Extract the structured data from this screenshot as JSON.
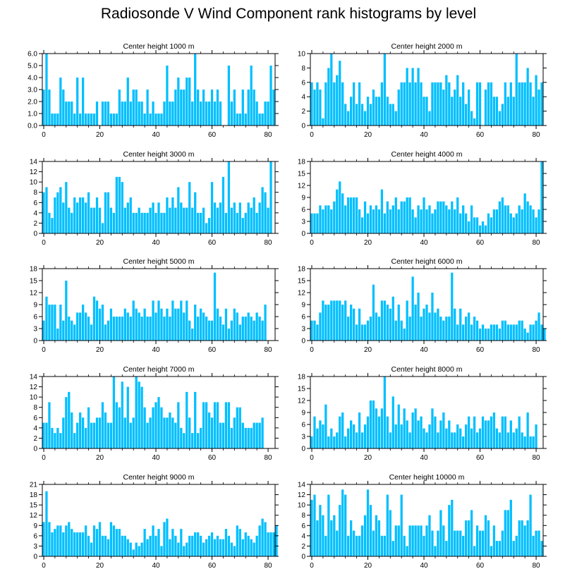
{
  "figure": {
    "title": "Radiosonde V Wind Component rank histograms by level",
    "bar_color": "#00bfff",
    "axis_color": "#000000"
  },
  "chart_data": [
    {
      "type": "bar",
      "title": "Center height 1000 m",
      "x_ticks": [
        0,
        20,
        40,
        60,
        80
      ],
      "y_ticks": [
        "0.0",
        "1.0",
        "2.0",
        "3.0",
        "4.0",
        "5.0",
        "6.0"
      ],
      "ylim": [
        0,
        6
      ],
      "values": [
        3,
        6,
        3,
        1,
        1,
        1,
        4,
        3,
        2,
        2,
        2,
        1,
        4,
        1,
        4,
        1,
        1,
        1,
        1,
        2,
        0,
        2,
        2,
        2,
        1,
        1,
        1,
        3,
        2,
        2,
        4,
        2,
        3,
        3,
        2,
        2,
        1,
        3,
        1,
        2,
        1,
        1,
        1,
        2,
        5,
        2,
        2,
        3,
        4,
        3,
        3,
        4,
        4,
        2,
        6,
        3,
        2,
        3,
        2,
        2,
        3,
        2,
        3,
        2,
        0,
        0,
        5,
        2,
        3,
        1,
        1,
        3,
        1,
        3,
        5,
        3,
        2,
        1,
        1,
        2,
        2,
        5,
        3
      ]
    },
    {
      "type": "bar",
      "title": "Center height 2000 m",
      "x_ticks": [
        0,
        20,
        40,
        60,
        80
      ],
      "y_ticks": [
        "0",
        "2",
        "4",
        "6",
        "8",
        "10"
      ],
      "ylim": [
        0,
        10
      ],
      "values": [
        6,
        5,
        6,
        5,
        1,
        6,
        8,
        10,
        6,
        7,
        9,
        6,
        3,
        2,
        4,
        6,
        3,
        6,
        3,
        2,
        4,
        3,
        5,
        4,
        4,
        6,
        10,
        4,
        3,
        3,
        2,
        5,
        6,
        6,
        8,
        6,
        8,
        6,
        8,
        6,
        4,
        4,
        2,
        6,
        6,
        6,
        6,
        5,
        7,
        6,
        4,
        5,
        7,
        4,
        6,
        3,
        5,
        2,
        1,
        6,
        6,
        0,
        5,
        6,
        6,
        4,
        4,
        2,
        3,
        6,
        4,
        6,
        4,
        10,
        6,
        6,
        6,
        8,
        6,
        4,
        7,
        5,
        6
      ]
    },
    {
      "type": "bar",
      "title": "Center height 3000 m",
      "x_ticks": [
        0,
        20,
        40,
        60,
        80
      ],
      "y_ticks": [
        "0",
        "2",
        "4",
        "6",
        "8",
        "10",
        "12",
        "14"
      ],
      "ylim": [
        0,
        14
      ],
      "values": [
        8,
        9,
        4,
        3,
        7,
        8,
        9,
        6,
        10,
        5,
        4,
        7,
        6,
        7,
        7,
        6,
        8,
        5,
        5,
        7,
        5,
        2,
        8,
        8,
        5,
        4,
        11,
        11,
        10,
        5,
        6,
        7,
        4,
        4,
        5,
        4,
        4,
        4,
        5,
        6,
        4,
        6,
        4,
        4,
        7,
        5,
        7,
        5,
        9,
        6,
        5,
        5,
        10,
        5,
        8,
        4,
        4,
        5,
        2,
        3,
        10,
        6,
        5,
        6,
        11,
        4,
        14,
        5,
        6,
        4,
        6,
        3,
        4,
        6,
        5,
        7,
        4,
        6,
        9,
        8,
        5,
        14
      ]
    },
    {
      "type": "bar",
      "title": "Center height 4000 m",
      "x_ticks": [
        0,
        20,
        40,
        60,
        80
      ],
      "y_ticks": [
        "0",
        "3",
        "6",
        "9",
        "12",
        "15",
        "18"
      ],
      "ylim": [
        0,
        18
      ],
      "values": [
        5,
        5,
        5,
        7,
        6,
        7,
        7,
        6,
        8,
        11,
        13,
        10,
        7,
        9,
        9,
        9,
        9,
        6,
        4,
        8,
        5,
        7,
        6,
        7,
        6,
        11,
        5,
        8,
        6,
        7,
        9,
        6,
        8,
        8,
        9,
        9,
        6,
        4,
        7,
        6,
        9,
        6,
        7,
        5,
        6,
        8,
        8,
        8,
        7,
        6,
        8,
        6,
        9,
        5,
        7,
        5,
        3,
        7,
        4,
        4,
        2,
        3,
        2,
        5,
        4,
        6,
        6,
        8,
        9,
        7,
        7,
        5,
        4,
        5,
        7,
        6,
        10,
        8,
        7,
        6,
        4,
        6,
        18
      ]
    },
    {
      "type": "bar",
      "title": "Center height 5000 m",
      "x_ticks": [
        0,
        20,
        40,
        60,
        80
      ],
      "y_ticks": [
        "0",
        "3",
        "6",
        "9",
        "12",
        "15",
        "18"
      ],
      "ylim": [
        0,
        18
      ],
      "values": [
        5,
        11,
        9,
        9,
        9,
        3,
        9,
        5,
        15,
        6,
        5,
        4,
        7,
        7,
        9,
        7,
        6,
        4,
        11,
        10,
        8,
        9,
        4,
        5,
        8,
        6,
        6,
        6,
        6,
        8,
        7,
        6,
        10,
        8,
        7,
        6,
        8,
        6,
        6,
        10,
        7,
        10,
        8,
        6,
        8,
        6,
        10,
        8,
        8,
        10,
        7,
        10,
        5,
        3,
        9,
        6,
        8,
        7,
        6,
        5,
        5,
        17,
        8,
        6,
        4,
        8,
        3,
        5,
        8,
        7,
        4,
        6,
        6,
        7,
        6,
        5,
        7,
        6,
        5,
        9
      ]
    },
    {
      "type": "bar",
      "title": "Center height 6000 m",
      "x_ticks": [
        0,
        20,
        40,
        60,
        80
      ],
      "y_ticks": [
        "0",
        "3",
        "6",
        "9",
        "12",
        "15",
        "18"
      ],
      "ylim": [
        0,
        18
      ],
      "values": [
        5,
        5,
        4,
        7,
        10,
        9,
        9,
        10,
        10,
        10,
        10,
        9,
        10,
        6,
        9,
        8,
        4,
        8,
        4,
        4,
        5,
        6,
        14,
        7,
        6,
        10,
        10,
        9,
        8,
        11,
        5,
        9,
        5,
        3,
        10,
        6,
        16,
        9,
        12,
        6,
        8,
        9,
        7,
        12,
        7,
        8,
        6,
        5,
        6,
        6,
        17,
        8,
        4,
        8,
        4,
        6,
        7,
        4,
        6,
        5,
        3,
        4,
        3,
        3,
        4,
        4,
        4,
        3,
        5,
        5,
        4,
        4,
        4,
        4,
        5,
        5,
        3,
        2,
        4,
        4,
        5,
        7,
        4,
        3
      ]
    },
    {
      "type": "bar",
      "title": "Center height 7000 m",
      "x_ticks": [
        0,
        20,
        40,
        60,
        80
      ],
      "y_ticks": [
        "0",
        "2",
        "4",
        "6",
        "8",
        "10",
        "12",
        "14"
      ],
      "ylim": [
        0,
        14
      ],
      "values": [
        5,
        5,
        9,
        4,
        3,
        4,
        3,
        6,
        10,
        11,
        7,
        3,
        5,
        7,
        6,
        4,
        8,
        5,
        5,
        6,
        6,
        9,
        7,
        5,
        5,
        14,
        9,
        8,
        13,
        6,
        12,
        5,
        6,
        14,
        13,
        12,
        8,
        5,
        6,
        8,
        9,
        10,
        8,
        6,
        6,
        7,
        6,
        5,
        9,
        4,
        3,
        11,
        6,
        3,
        11,
        3,
        4,
        9,
        9,
        7,
        6,
        9,
        9,
        5,
        5,
        9,
        9,
        4,
        6,
        8,
        8,
        5,
        4,
        4,
        4,
        5,
        5,
        5,
        6
      ]
    },
    {
      "type": "bar",
      "title": "Center height 8000 m",
      "x_ticks": [
        0,
        20,
        40,
        60,
        80
      ],
      "y_ticks": [
        "0",
        "3",
        "6",
        "9",
        "12",
        "15",
        "18"
      ],
      "ylim": [
        0,
        18
      ],
      "values": [
        3,
        8,
        5,
        7,
        6,
        11,
        3,
        5,
        3,
        4,
        8,
        9,
        3,
        5,
        7,
        6,
        4,
        9,
        4,
        6,
        8,
        12,
        12,
        10,
        8,
        10,
        18,
        8,
        4,
        13,
        6,
        11,
        6,
        10,
        7,
        4,
        9,
        10,
        7,
        8,
        5,
        4,
        6,
        10,
        8,
        4,
        7,
        9,
        5,
        7,
        4,
        4,
        6,
        5,
        3,
        6,
        8,
        5,
        8,
        4,
        5,
        8,
        7,
        7,
        8,
        9,
        5,
        4,
        8,
        8,
        4,
        7,
        4,
        5,
        8,
        4,
        3,
        9,
        3,
        3,
        6
      ]
    },
    {
      "type": "bar",
      "title": "Center height 9000 m",
      "x_ticks": [
        0,
        20,
        40,
        60,
        80
      ],
      "y_ticks": [
        "0",
        "3",
        "6",
        "9",
        "12",
        "15",
        "18",
        "21"
      ],
      "ylim": [
        0,
        21
      ],
      "values": [
        10,
        19,
        10,
        7,
        8,
        9,
        9,
        7,
        9,
        10,
        8,
        7,
        7,
        7,
        7,
        9,
        6,
        4,
        9,
        8,
        10,
        6,
        6,
        5,
        10,
        9,
        8,
        8,
        6,
        6,
        5,
        4,
        2,
        4,
        3,
        4,
        8,
        5,
        6,
        9,
        6,
        8,
        3,
        10,
        11,
        5,
        8,
        6,
        4,
        8,
        3,
        4,
        6,
        6,
        7,
        7,
        6,
        4,
        5,
        6,
        7,
        5,
        6,
        5,
        5,
        8,
        6,
        4,
        3,
        9,
        8,
        5,
        7,
        6,
        5,
        4,
        6,
        9,
        11,
        10,
        7,
        7,
        7,
        9
      ]
    },
    {
      "type": "bar",
      "title": "Center height 10000 m",
      "x_ticks": [
        0,
        20,
        40,
        60,
        80
      ],
      "y_ticks": [
        "0",
        "2",
        "4",
        "6",
        "8",
        "10",
        "12",
        "14"
      ],
      "ylim": [
        0,
        14
      ],
      "values": [
        11,
        12,
        7,
        10,
        8,
        4,
        12,
        7,
        8,
        5,
        10,
        13,
        12,
        4,
        7,
        5,
        4,
        4,
        6,
        8,
        13,
        10,
        5,
        8,
        7,
        4,
        4,
        12,
        9,
        3,
        6,
        6,
        12,
        4,
        2,
        6,
        6,
        6,
        6,
        6,
        4,
        6,
        8,
        5,
        2,
        5,
        9,
        6,
        3,
        10,
        11,
        5,
        5,
        5,
        4,
        7,
        7,
        9,
        2,
        6,
        5,
        5,
        8,
        7,
        2,
        6,
        3,
        3,
        5,
        9,
        9,
        11,
        3,
        4,
        7,
        7,
        6,
        7,
        12,
        4,
        5,
        5,
        3
      ]
    }
  ]
}
